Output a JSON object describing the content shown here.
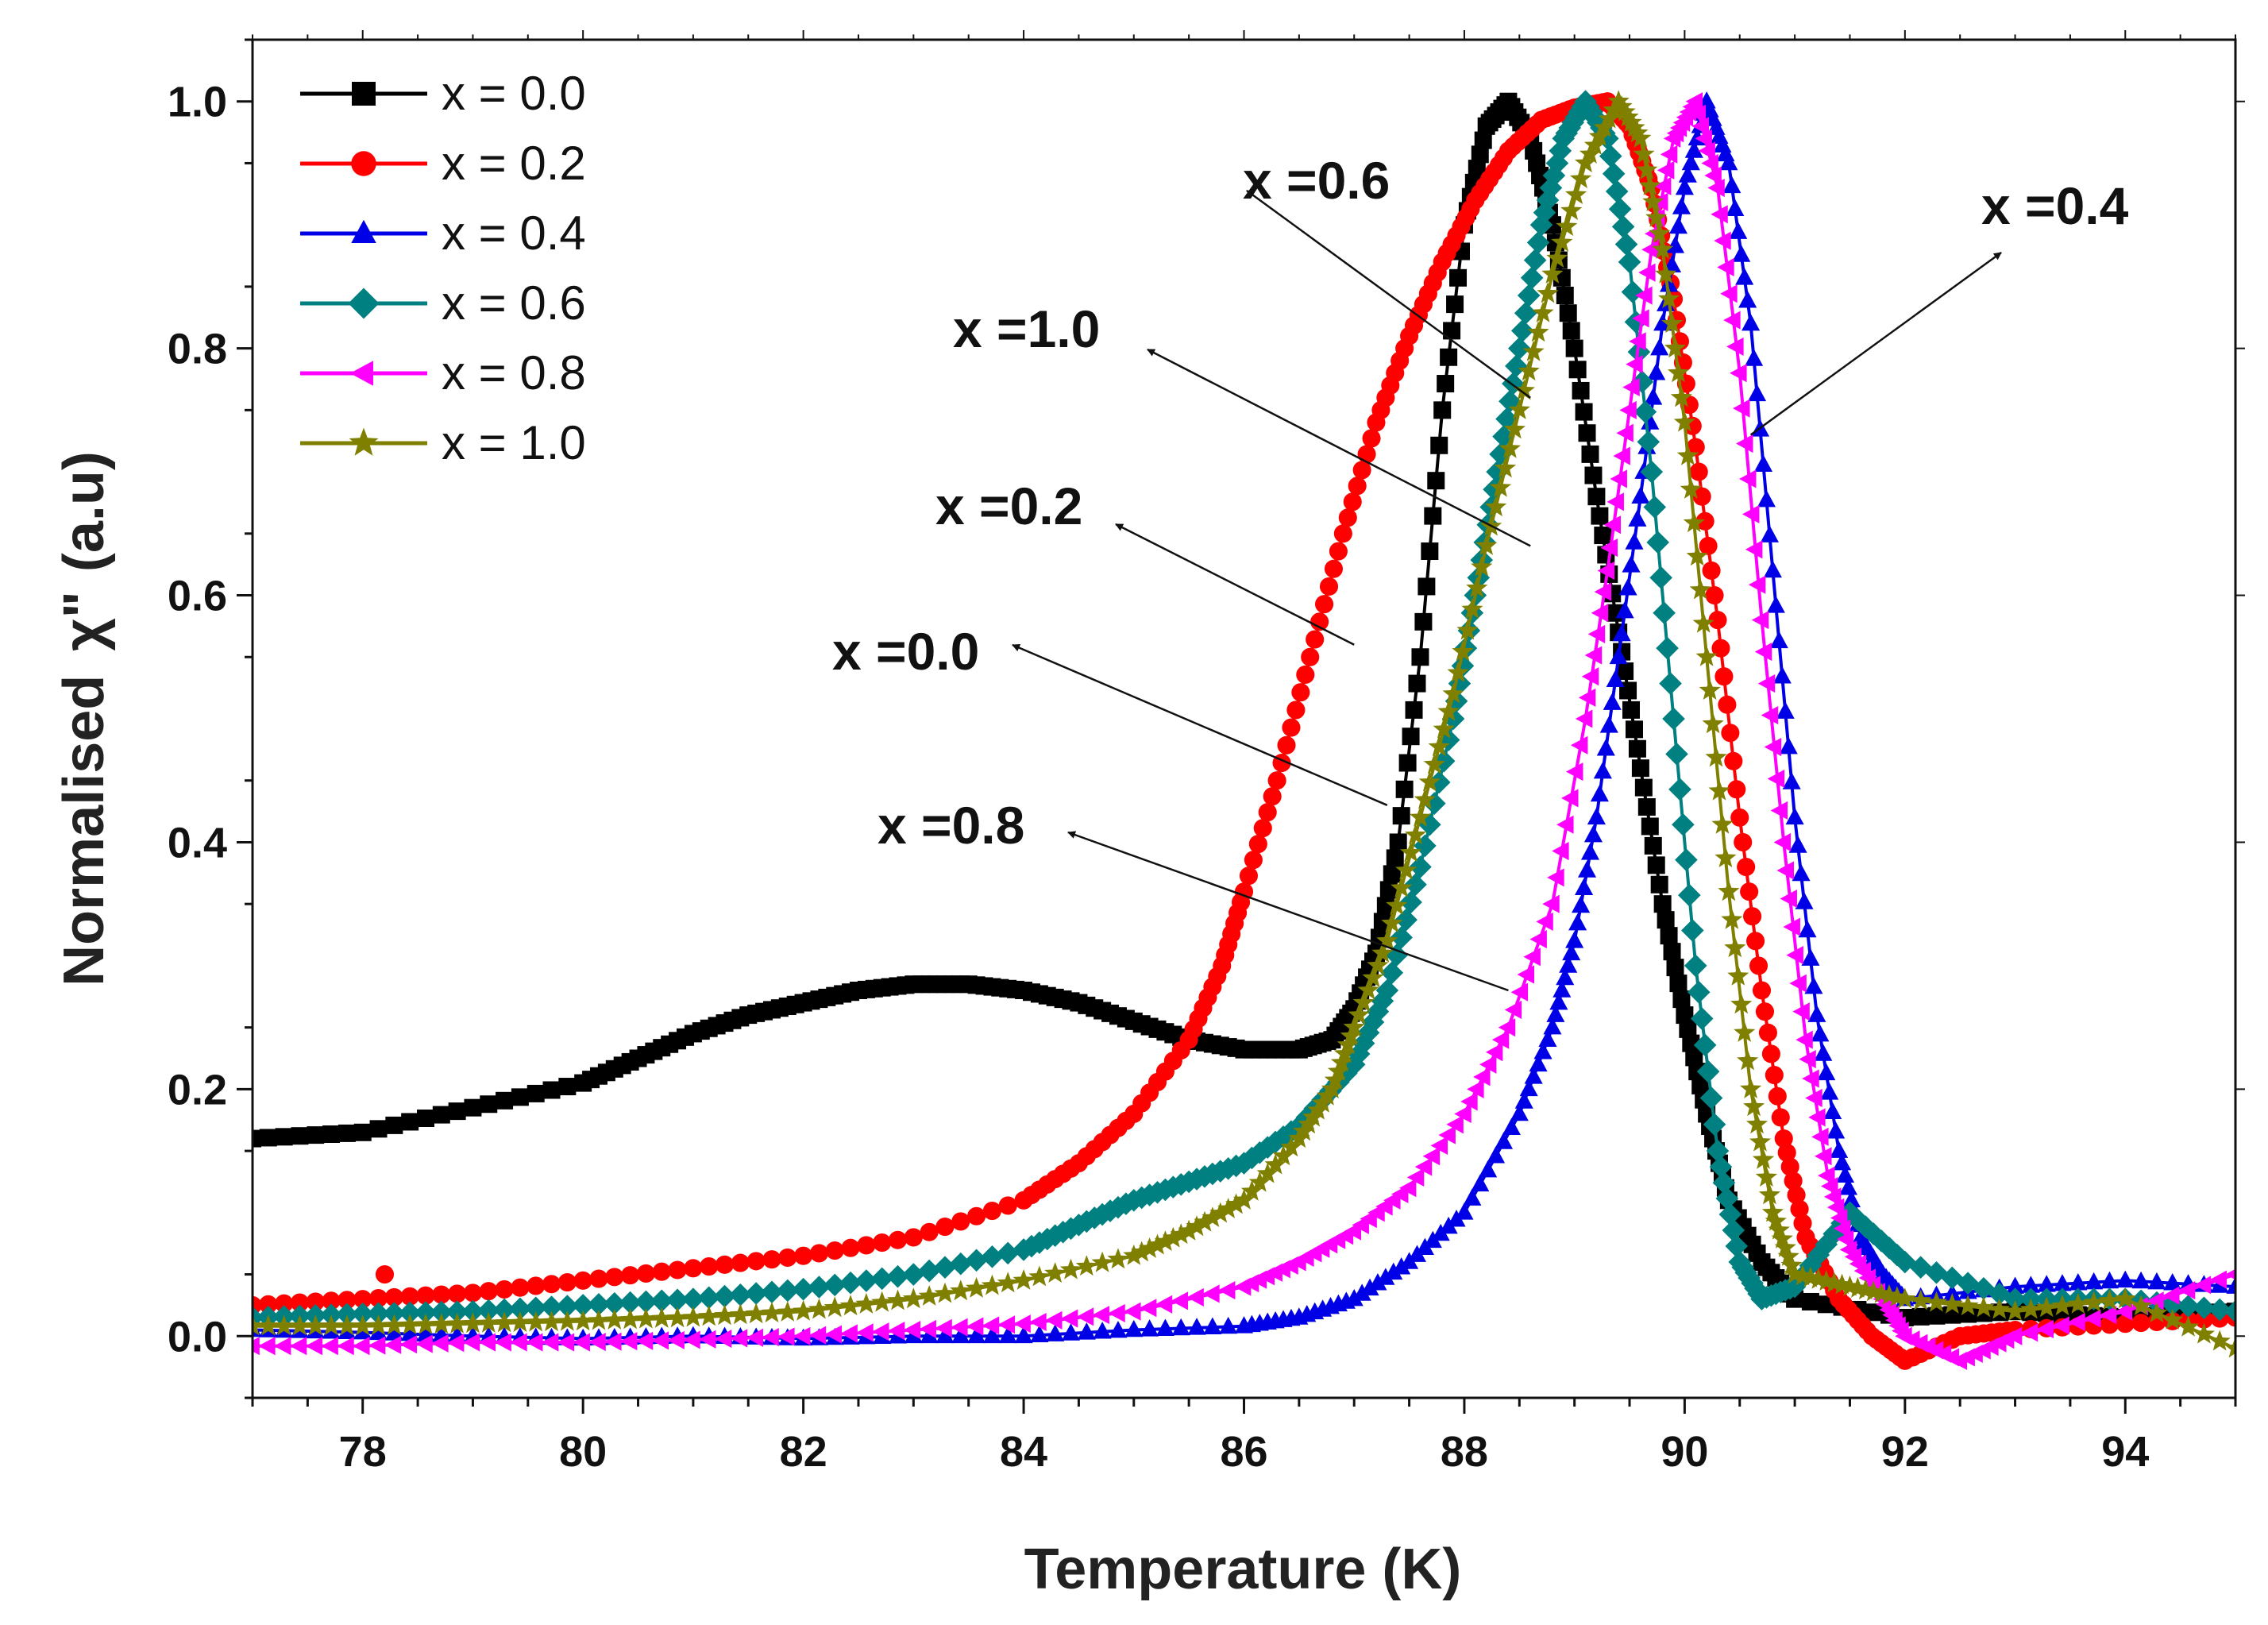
{
  "chart_data": {
    "type": "scatter",
    "title": "",
    "xlabel": "Temperature (K)",
    "ylabel_text": "Normalised",
    "ylabel_symbol": "χ\"",
    "ylabel_unit": "(a.u)",
    "xlim": [
      77,
      95
    ],
    "ylim": [
      -0.05,
      1.05
    ],
    "x_ticks": [
      "78",
      "80",
      "82",
      "84",
      "86",
      "88",
      "90",
      "92",
      "94"
    ],
    "y_ticks": [
      "0.0",
      "0.2",
      "0.4",
      "0.6",
      "0.8",
      "1.0"
    ],
    "legend_position": "top-left",
    "series": [
      {
        "name": "x = 0.0",
        "color": "#000000",
        "marker": "square",
        "points": [
          [
            77,
            0.16
          ],
          [
            78,
            0.165
          ],
          [
            79,
            0.185
          ],
          [
            80,
            0.205
          ],
          [
            80.5,
            0.225
          ],
          [
            81,
            0.245
          ],
          [
            81.5,
            0.26
          ],
          [
            82,
            0.27
          ],
          [
            82.5,
            0.28
          ],
          [
            83,
            0.285
          ],
          [
            83.5,
            0.285
          ],
          [
            84,
            0.28
          ],
          [
            84.5,
            0.27
          ],
          [
            85,
            0.255
          ],
          [
            85.5,
            0.24
          ],
          [
            86,
            0.232
          ],
          [
            86.5,
            0.232
          ],
          [
            86.8,
            0.24
          ],
          [
            87,
            0.265
          ],
          [
            87.2,
            0.31
          ],
          [
            87.4,
            0.4
          ],
          [
            87.6,
            0.55
          ],
          [
            87.8,
            0.75
          ],
          [
            88,
            0.9
          ],
          [
            88.2,
            0.98
          ],
          [
            88.4,
            1.0
          ],
          [
            88.6,
            0.97
          ],
          [
            88.8,
            0.9
          ],
          [
            89,
            0.8
          ],
          [
            89.2,
            0.68
          ],
          [
            89.4,
            0.57
          ],
          [
            89.6,
            0.46
          ],
          [
            89.8,
            0.35
          ],
          [
            90,
            0.26
          ],
          [
            90.2,
            0.18
          ],
          [
            90.4,
            0.11
          ],
          [
            90.7,
            0.06
          ],
          [
            91,
            0.03
          ],
          [
            92,
            0.015
          ],
          [
            93,
            0.02
          ],
          [
            94,
            0.015
          ],
          [
            95,
            0.02
          ]
        ]
      },
      {
        "name": "x = 0.2",
        "color": "#ff0000",
        "marker": "circle",
        "points": [
          [
            77,
            0.025
          ],
          [
            78,
            0.03
          ],
          [
            79,
            0.035
          ],
          [
            80,
            0.045
          ],
          [
            81,
            0.055
          ],
          [
            82,
            0.065
          ],
          [
            83,
            0.08
          ],
          [
            84,
            0.11
          ],
          [
            84.5,
            0.14
          ],
          [
            85,
            0.18
          ],
          [
            85.5,
            0.24
          ],
          [
            85.8,
            0.3
          ],
          [
            86,
            0.36
          ],
          [
            86.3,
            0.45
          ],
          [
            86.6,
            0.55
          ],
          [
            86.9,
            0.65
          ],
          [
            87.2,
            0.74
          ],
          [
            87.5,
            0.81
          ],
          [
            87.8,
            0.87
          ],
          [
            88.1,
            0.92
          ],
          [
            88.4,
            0.96
          ],
          [
            88.7,
            0.985
          ],
          [
            89,
            0.995
          ],
          [
            89.3,
            1.0
          ],
          [
            89.5,
            0.98
          ],
          [
            89.7,
            0.93
          ],
          [
            89.9,
            0.84
          ],
          [
            90.1,
            0.72
          ],
          [
            90.3,
            0.58
          ],
          [
            90.5,
            0.42
          ],
          [
            90.7,
            0.28
          ],
          [
            90.9,
            0.16
          ],
          [
            91.1,
            0.08
          ],
          [
            91.4,
            0.03
          ],
          [
            91.7,
            0.0
          ],
          [
            92,
            -0.02
          ],
          [
            92.5,
            0.0
          ],
          [
            93,
            0.005
          ],
          [
            94,
            0.01
          ],
          [
            95,
            0.015
          ]
        ],
        "outlier": [
          78.2,
          0.05
        ]
      },
      {
        "name": "x = 0.4",
        "color": "#0000e6",
        "marker": "triangle",
        "points": [
          [
            77,
            0.005
          ],
          [
            78,
            0.003
          ],
          [
            79,
            0.0
          ],
          [
            80,
            -0.002
          ],
          [
            81,
            0.0
          ],
          [
            82,
            -0.002
          ],
          [
            83,
            0.0
          ],
          [
            84,
            0.0
          ],
          [
            85,
            0.005
          ],
          [
            86,
            0.008
          ],
          [
            86.5,
            0.015
          ],
          [
            87,
            0.03
          ],
          [
            87.5,
            0.06
          ],
          [
            88,
            0.1
          ],
          [
            88.5,
            0.18
          ],
          [
            88.8,
            0.25
          ],
          [
            89,
            0.32
          ],
          [
            89.2,
            0.42
          ],
          [
            89.4,
            0.55
          ],
          [
            89.6,
            0.68
          ],
          [
            89.8,
            0.82
          ],
          [
            90,
            0.93
          ],
          [
            90.2,
            1.0
          ],
          [
            90.4,
            0.95
          ],
          [
            90.6,
            0.82
          ],
          [
            90.8,
            0.62
          ],
          [
            91,
            0.42
          ],
          [
            91.2,
            0.26
          ],
          [
            91.4,
            0.15
          ],
          [
            91.6,
            0.08
          ],
          [
            91.8,
            0.05
          ],
          [
            92,
            0.03
          ],
          [
            93,
            0.04
          ],
          [
            94,
            0.045
          ],
          [
            95,
            0.04
          ]
        ]
      },
      {
        "name": "x = 0.6",
        "color": "#008080",
        "marker": "diamond",
        "points": [
          [
            77,
            0.015
          ],
          [
            78,
            0.018
          ],
          [
            79,
            0.02
          ],
          [
            80,
            0.025
          ],
          [
            81,
            0.03
          ],
          [
            82,
            0.038
          ],
          [
            83,
            0.05
          ],
          [
            84,
            0.07
          ],
          [
            84.5,
            0.09
          ],
          [
            85,
            0.11
          ],
          [
            85.5,
            0.125
          ],
          [
            86,
            0.14
          ],
          [
            86.5,
            0.17
          ],
          [
            87,
            0.22
          ],
          [
            87.3,
            0.28
          ],
          [
            87.6,
            0.38
          ],
          [
            87.9,
            0.5
          ],
          [
            88.1,
            0.6
          ],
          [
            88.3,
            0.7
          ],
          [
            88.5,
            0.8
          ],
          [
            88.7,
            0.9
          ],
          [
            88.9,
            0.97
          ],
          [
            89.1,
            1.0
          ],
          [
            89.3,
            0.97
          ],
          [
            89.5,
            0.87
          ],
          [
            89.7,
            0.7
          ],
          [
            89.9,
            0.5
          ],
          [
            90.1,
            0.3
          ],
          [
            90.3,
            0.15
          ],
          [
            90.5,
            0.06
          ],
          [
            90.7,
            0.03
          ],
          [
            91,
            0.04
          ],
          [
            91.5,
            0.1
          ],
          [
            92,
            0.06
          ],
          [
            93,
            0.03
          ],
          [
            94,
            0.03
          ],
          [
            95,
            0.02
          ]
        ]
      },
      {
        "name": "x = 0.8",
        "color": "#ff00ff",
        "marker": "triangle-left",
        "points": [
          [
            77,
            -0.008
          ],
          [
            78,
            -0.008
          ],
          [
            79,
            -0.005
          ],
          [
            80,
            -0.005
          ],
          [
            81,
            -0.003
          ],
          [
            82,
            0.0
          ],
          [
            83,
            0.005
          ],
          [
            84,
            0.01
          ],
          [
            85,
            0.02
          ],
          [
            86,
            0.04
          ],
          [
            86.5,
            0.06
          ],
          [
            87,
            0.085
          ],
          [
            87.5,
            0.12
          ],
          [
            88,
            0.18
          ],
          [
            88.4,
            0.25
          ],
          [
            88.8,
            0.35
          ],
          [
            89.1,
            0.5
          ],
          [
            89.3,
            0.62
          ],
          [
            89.5,
            0.75
          ],
          [
            89.7,
            0.88
          ],
          [
            89.9,
            0.97
          ],
          [
            90.1,
            1.0
          ],
          [
            90.3,
            0.93
          ],
          [
            90.5,
            0.78
          ],
          [
            90.7,
            0.58
          ],
          [
            90.9,
            0.4
          ],
          [
            91.1,
            0.24
          ],
          [
            91.3,
            0.13
          ],
          [
            91.5,
            0.07
          ],
          [
            91.8,
            0.03
          ],
          [
            92,
            0.0
          ],
          [
            92.5,
            -0.02
          ],
          [
            93,
            0.0
          ],
          [
            94,
            0.02
          ],
          [
            95,
            0.05
          ]
        ]
      },
      {
        "name": "x = 1.0",
        "color": "#808000",
        "marker": "star",
        "points": [
          [
            77,
            0.008
          ],
          [
            78,
            0.008
          ],
          [
            79,
            0.01
          ],
          [
            80,
            0.012
          ],
          [
            81,
            0.015
          ],
          [
            82,
            0.02
          ],
          [
            83,
            0.03
          ],
          [
            84,
            0.045
          ],
          [
            85,
            0.065
          ],
          [
            85.5,
            0.085
          ],
          [
            86,
            0.11
          ],
          [
            86.5,
            0.16
          ],
          [
            86.8,
            0.2
          ],
          [
            87,
            0.25
          ],
          [
            87.3,
            0.32
          ],
          [
            87.6,
            0.42
          ],
          [
            87.9,
            0.52
          ],
          [
            88.2,
            0.64
          ],
          [
            88.5,
            0.75
          ],
          [
            88.8,
            0.86
          ],
          [
            89.1,
            0.95
          ],
          [
            89.4,
            1.0
          ],
          [
            89.6,
            0.97
          ],
          [
            89.8,
            0.88
          ],
          [
            90,
            0.74
          ],
          [
            90.2,
            0.55
          ],
          [
            90.4,
            0.36
          ],
          [
            90.6,
            0.2
          ],
          [
            90.8,
            0.1
          ],
          [
            91,
            0.05
          ],
          [
            91.5,
            0.04
          ],
          [
            92,
            0.03
          ],
          [
            93,
            0.02
          ],
          [
            94,
            0.03
          ],
          [
            95,
            -0.01
          ]
        ]
      }
    ],
    "annotations": [
      {
        "text": "x =0.6",
        "target": [
          88.6,
          0.76
        ]
      },
      {
        "text": "x =0.4",
        "target": [
          90.6,
          0.73
        ]
      },
      {
        "text": "x =1.0",
        "target": [
          88.6,
          0.64
        ]
      },
      {
        "text": "x =0.2",
        "target": [
          87.0,
          0.56
        ]
      },
      {
        "text": "x =0.0",
        "target": [
          87.3,
          0.43
        ]
      },
      {
        "text": "x =0.8",
        "target": [
          88.4,
          0.28
        ]
      }
    ]
  }
}
